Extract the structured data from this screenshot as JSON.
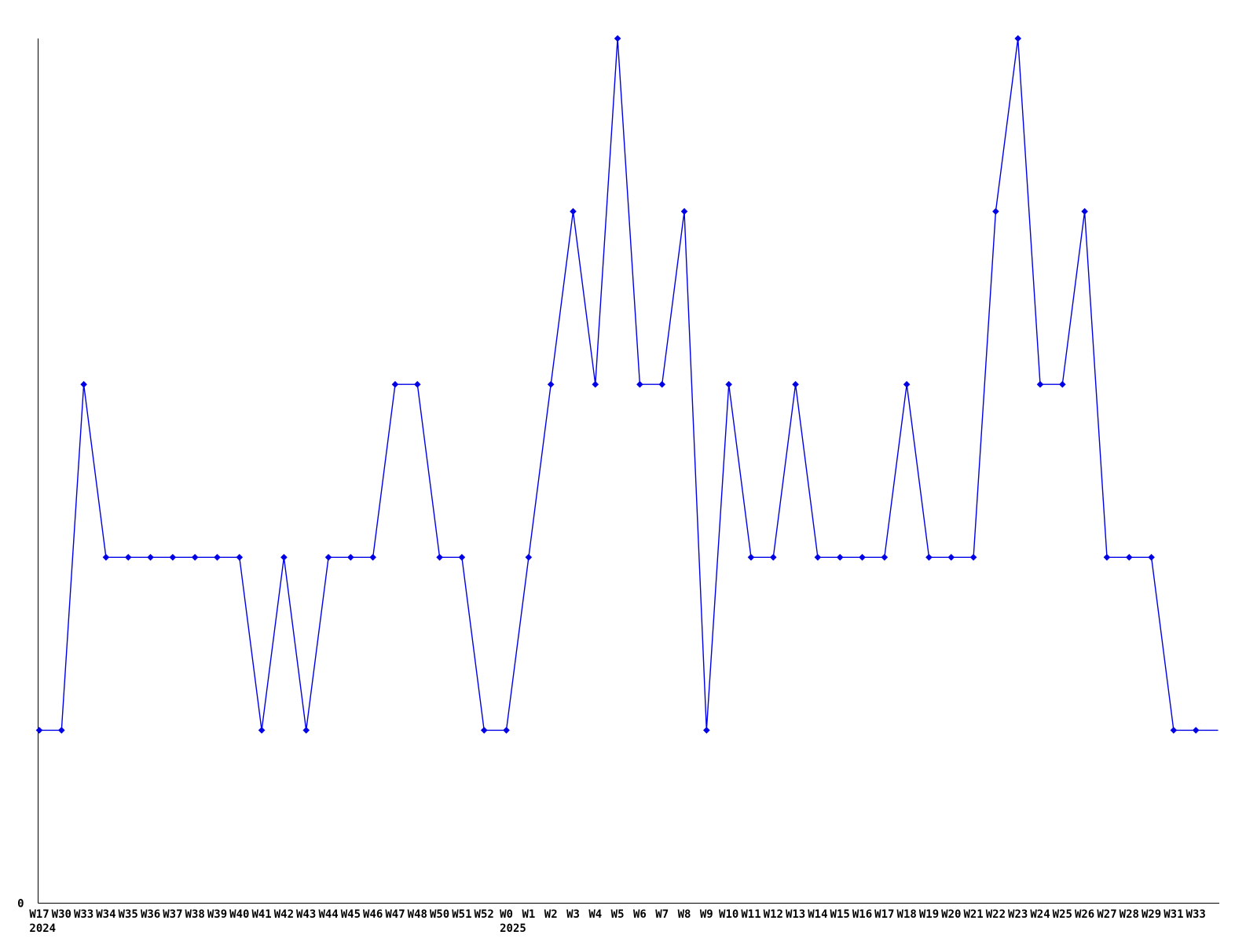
{
  "window": {
    "background_color": "#ffffff"
  },
  "chart_data": {
    "type": "line",
    "title": "",
    "xlabel": "",
    "ylabel": "",
    "categories": [
      "W17",
      "W30",
      "W33",
      "W34",
      "W35",
      "W36",
      "W37",
      "W38",
      "W39",
      "W40",
      "W41",
      "W42",
      "W43",
      "W44",
      "W45",
      "W46",
      "W47",
      "W48",
      "W50",
      "W51",
      "W52",
      "W0",
      "W1",
      "W2",
      "W3",
      "W4",
      "W5",
      "W6",
      "W7",
      "W8",
      "W9",
      "W10",
      "W11",
      "W12",
      "W13",
      "W14",
      "W15",
      "W16",
      "W17",
      "W18",
      "W19",
      "W20",
      "W21",
      "W22",
      "W23",
      "W24",
      "W25",
      "W26",
      "W27",
      "W28",
      "W29",
      "W31",
      "W33"
    ],
    "values": [
      1,
      1,
      3,
      2,
      2,
      2,
      2,
      2,
      2,
      2,
      1,
      2,
      1,
      2,
      2,
      2,
      3,
      3,
      2,
      2,
      1,
      1,
      2,
      3,
      4,
      3,
      5,
      3,
      3,
      4,
      1,
      3,
      2,
      2,
      3,
      2,
      2,
      2,
      2,
      3,
      2,
      2,
      2,
      4,
      5,
      3,
      3,
      4,
      2,
      2,
      2,
      1,
      1
    ],
    "year_row_labels": [
      {
        "category_index": 0,
        "label": "2024"
      },
      {
        "category_index": 21,
        "label": "2025"
      }
    ],
    "y_tick_labels": [
      {
        "value": 0,
        "label": "0"
      }
    ],
    "ylim": [
      0,
      5
    ],
    "grid": false,
    "legend": null,
    "marker_shape": "diamond",
    "line_color": "#0000e6",
    "axis_color": "#000000",
    "text_color": "#000000",
    "line_starts_at_y_axis": true,
    "trailing_flat_extension_steps": 1
  }
}
